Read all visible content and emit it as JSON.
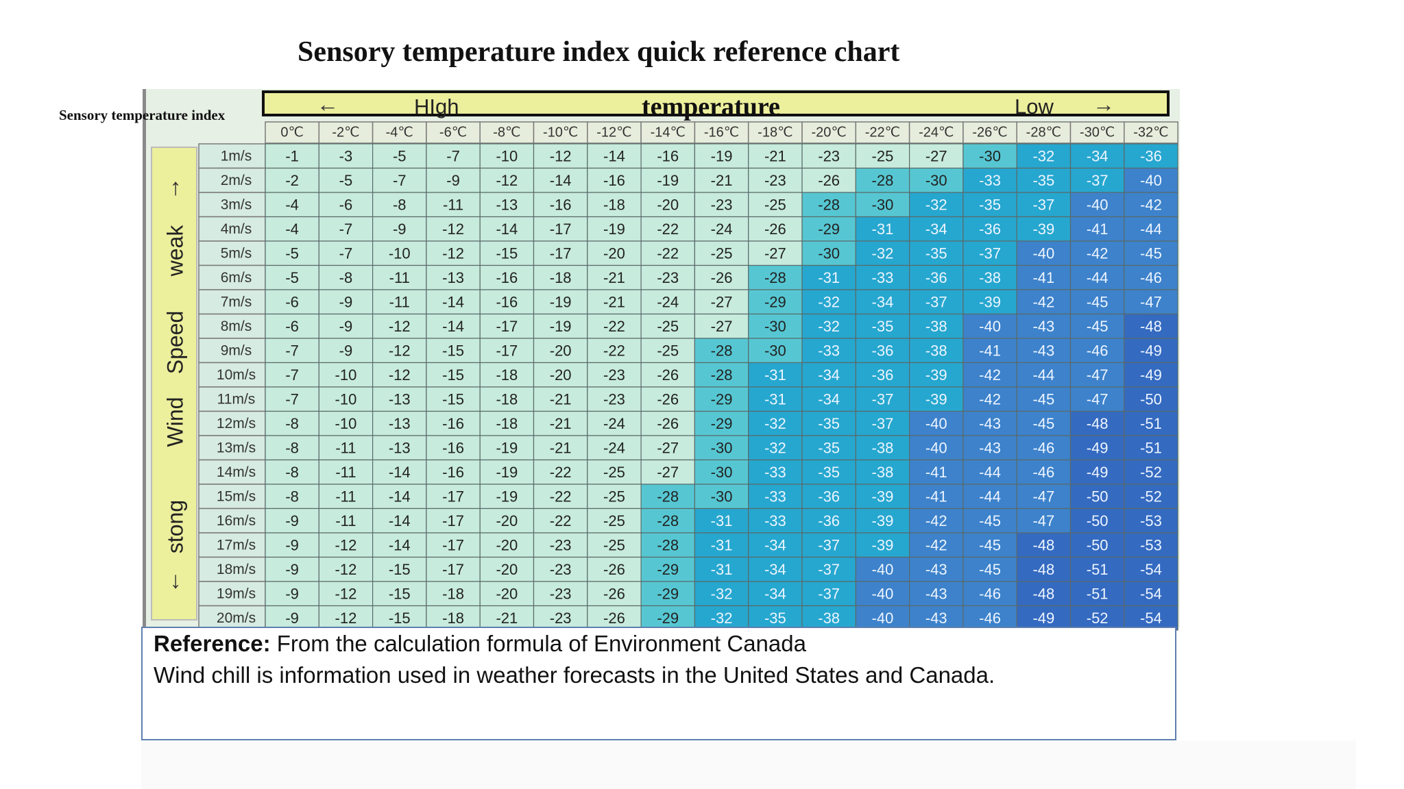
{
  "title": "Sensory temperature index quick reference chart",
  "corner_label": "Sensory temperature index",
  "banner": {
    "arrow_left": "←",
    "high": "HIgh",
    "title": "temperature",
    "low": "Low",
    "arrow_right": "→"
  },
  "wind_axis": {
    "arrow_up": "↑",
    "weak": "weak",
    "speed": "Speed",
    "wind": "Wind",
    "strong": "stong",
    "arrow_down": "↓"
  },
  "reference": {
    "lead": "Reference:",
    "line1": " From the calculation formula of Environment Canada",
    "line2": "Wind chill is information used in weather forecasts in the United States and Canada."
  },
  "colors": {
    "header_bg": "#e7eddc",
    "row_label_bg": "#d6ebe2",
    "pale": "#c7ebdd",
    "light": "#56c7d2",
    "mid": "#26a7cf",
    "dark": "#3d82cb",
    "darkest": "#346ac0"
  },
  "chart_data": {
    "type": "table",
    "title": "Sensory temperature index quick reference chart",
    "columns": [
      "0℃",
      "-2℃",
      "-4℃",
      "-6℃",
      "-8℃",
      "-10℃",
      "-12℃",
      "-14℃",
      "-16℃",
      "-18℃",
      "-20℃",
      "-22℃",
      "-24℃",
      "-26℃",
      "-28℃",
      "-30℃",
      "-32℃"
    ],
    "rows": [
      "1m/s",
      "2m/s",
      "3m/s",
      "4m/s",
      "5m/s",
      "6m/s",
      "7m/s",
      "8m/s",
      "9m/s",
      "10m/s",
      "11m/s",
      "12m/s",
      "13m/s",
      "14m/s",
      "15m/s",
      "16m/s",
      "17m/s",
      "18m/s",
      "19m/s",
      "20m/s"
    ],
    "values": [
      [
        "-1",
        "-3",
        "-5",
        "-7",
        "-10",
        "-12",
        "-14",
        "-16",
        "-19",
        "-21",
        "-23",
        "-25",
        "-27",
        "-30",
        "-32",
        "-34",
        "-36"
      ],
      [
        "-2",
        "-5",
        "-7",
        "-9",
        "-12",
        "-14",
        "-16",
        "-19",
        "-21",
        "-23",
        "-26",
        "-28",
        "-30",
        "-33",
        "-35",
        "-37",
        "-40"
      ],
      [
        "-4",
        "-6",
        "-8",
        "-11",
        "-13",
        "-16",
        "-18",
        "-20",
        "-23",
        "-25",
        "-28",
        "-30",
        "-32",
        "-35",
        "-37",
        "-40",
        "-42"
      ],
      [
        "-4",
        "-7",
        "-9",
        "-12",
        "-14",
        "-17",
        "-19",
        "-22",
        "-24",
        "-26",
        "-29",
        "-31",
        "-34",
        "-36",
        "-39",
        "-41",
        "-44"
      ],
      [
        "-5",
        "-7",
        "-10",
        "-12",
        "-15",
        "-17",
        "-20",
        "-22",
        "-25",
        "-27",
        "-30",
        "-32",
        "-35",
        "-37",
        "-40",
        "-42",
        "-45"
      ],
      [
        "-5",
        "-8",
        "-11",
        "-13",
        "-16",
        "-18",
        "-21",
        "-23",
        "-26",
        "-28",
        "-31",
        "-33",
        "-36",
        "-38",
        "-41",
        "-44",
        "-46"
      ],
      [
        "-6",
        "-9",
        "-11",
        "-14",
        "-16",
        "-19",
        "-21",
        "-24",
        "-27",
        "-29",
        "-32",
        "-34",
        "-37",
        "-39",
        "-42",
        "-45",
        "-47"
      ],
      [
        "-6",
        "-9",
        "-12",
        "-14",
        "-17",
        "-19",
        "-22",
        "-25",
        "-27",
        "-30",
        "-32",
        "-35",
        "-38",
        "-40",
        "-43",
        "-45",
        "-48"
      ],
      [
        "-7",
        "-9",
        "-12",
        "-15",
        "-17",
        "-20",
        "-22",
        "-25",
        "-28",
        "-30",
        "-33",
        "-36",
        "-38",
        "-41",
        "-43",
        "-46",
        "-49"
      ],
      [
        "-7",
        "-10",
        "-12",
        "-15",
        "-18",
        "-20",
        "-23",
        "-26",
        "-28",
        "-31",
        "-34",
        "-36",
        "-39",
        "-42",
        "-44",
        "-47",
        "-49"
      ],
      [
        "-7",
        "-10",
        "-13",
        "-15",
        "-18",
        "-21",
        "-23",
        "-26",
        "-29",
        "-31",
        "-34",
        "-37",
        "-39",
        "-42",
        "-45",
        "-47",
        "-50"
      ],
      [
        "-8",
        "-10",
        "-13",
        "-16",
        "-18",
        "-21",
        "-24",
        "-26",
        "-29",
        "-32",
        "-35",
        "-37",
        "-40",
        "-43",
        "-45",
        "-48",
        "-51"
      ],
      [
        "-8",
        "-11",
        "-13",
        "-16",
        "-19",
        "-21",
        "-24",
        "-27",
        "-30",
        "-32",
        "-35",
        "-38",
        "-40",
        "-43",
        "-46",
        "-49",
        "-51"
      ],
      [
        "-8",
        "-11",
        "-14",
        "-16",
        "-19",
        "-22",
        "-25",
        "-27",
        "-30",
        "-33",
        "-35",
        "-38",
        "-41",
        "-44",
        "-46",
        "-49",
        "-52"
      ],
      [
        "-8",
        "-11",
        "-14",
        "-17",
        "-19",
        "-22",
        "-25",
        "-28",
        "-30",
        "-33",
        "-36",
        "-39",
        "-41",
        "-44",
        "-47",
        "-50",
        "-52"
      ],
      [
        "-9",
        "-11",
        "-14",
        "-17",
        "-20",
        "-22",
        "-25",
        "-28",
        "-31",
        "-33",
        "-36",
        "-39",
        "-42",
        "-45",
        "-47",
        "-50",
        "-53"
      ],
      [
        "-9",
        "-12",
        "-14",
        "-17",
        "-20",
        "-23",
        "-25",
        "-28",
        "-31",
        "-34",
        "-37",
        "-39",
        "-42",
        "-45",
        "-48",
        "-50",
        "-53"
      ],
      [
        "-9",
        "-12",
        "-15",
        "-17",
        "-20",
        "-23",
        "-26",
        "-29",
        "-31",
        "-34",
        "-37",
        "-40",
        "-43",
        "-45",
        "-48",
        "-51",
        "-54"
      ],
      [
        "-9",
        "-12",
        "-15",
        "-18",
        "-20",
        "-23",
        "-26",
        "-29",
        "-32",
        "-34",
        "-37",
        "-40",
        "-43",
        "-46",
        "-48",
        "-51",
        "-54"
      ],
      [
        "-9",
        "-12",
        "-15",
        "-18",
        "-21",
        "-23",
        "-26",
        "-29",
        "-32",
        "-35",
        "-38",
        "-40",
        "-43",
        "-46",
        "-49",
        "-52",
        "-54"
      ]
    ]
  }
}
